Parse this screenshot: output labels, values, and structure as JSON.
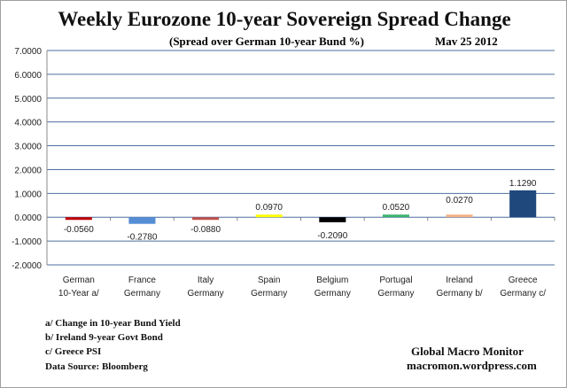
{
  "chart_data": {
    "type": "bar",
    "title": "Weekly Eurozone 10-year Sovereign Spread Change",
    "subtitle": "(Spread over German 10-year Bund  %)",
    "date": "Mav 25  2012",
    "categories": [
      [
        "German",
        "10-Year a/"
      ],
      [
        "France",
        "Germany"
      ],
      [
        "Italy",
        "Germany"
      ],
      [
        "Spain",
        "Germany"
      ],
      [
        "Belgium",
        "Germany"
      ],
      [
        "Portugal",
        "Germany"
      ],
      [
        "Ireland",
        "Germany b/"
      ],
      [
        "Greece",
        "Germany c/"
      ]
    ],
    "values": [
      -0.056,
      -0.278,
      -0.088,
      0.097,
      -0.209,
      0.052,
      0.027,
      1.129
    ],
    "data_labels": [
      "-0.0560",
      "-0.2780",
      "-0.0880",
      "0.0970",
      "-0.2090",
      "0.0520",
      "0.0270",
      "1.1290"
    ],
    "colors": [
      "#c00000",
      "#558ed5",
      "#c0504d",
      "#ffff00",
      "#000000",
      "#3cb371",
      "#f4b183",
      "#1f497d"
    ],
    "ylim": [
      -2,
      7
    ],
    "yticks": [
      "-2.0000",
      "-1.0000",
      "0.0000",
      "1.0000",
      "2.0000",
      "3.0000",
      "4.0000",
      "5.0000",
      "6.0000",
      "7.0000"
    ],
    "grid": true
  },
  "notes": [
    "a/ Change in 10-year Bund Yield",
    "b/ Ireland 9-year Govt Bond",
    "c/ Greece PSI",
    "Data Source:  Bloomberg"
  ],
  "source": {
    "name": "Global Macro Monitor",
    "url": "macromon.wordpress.com"
  }
}
